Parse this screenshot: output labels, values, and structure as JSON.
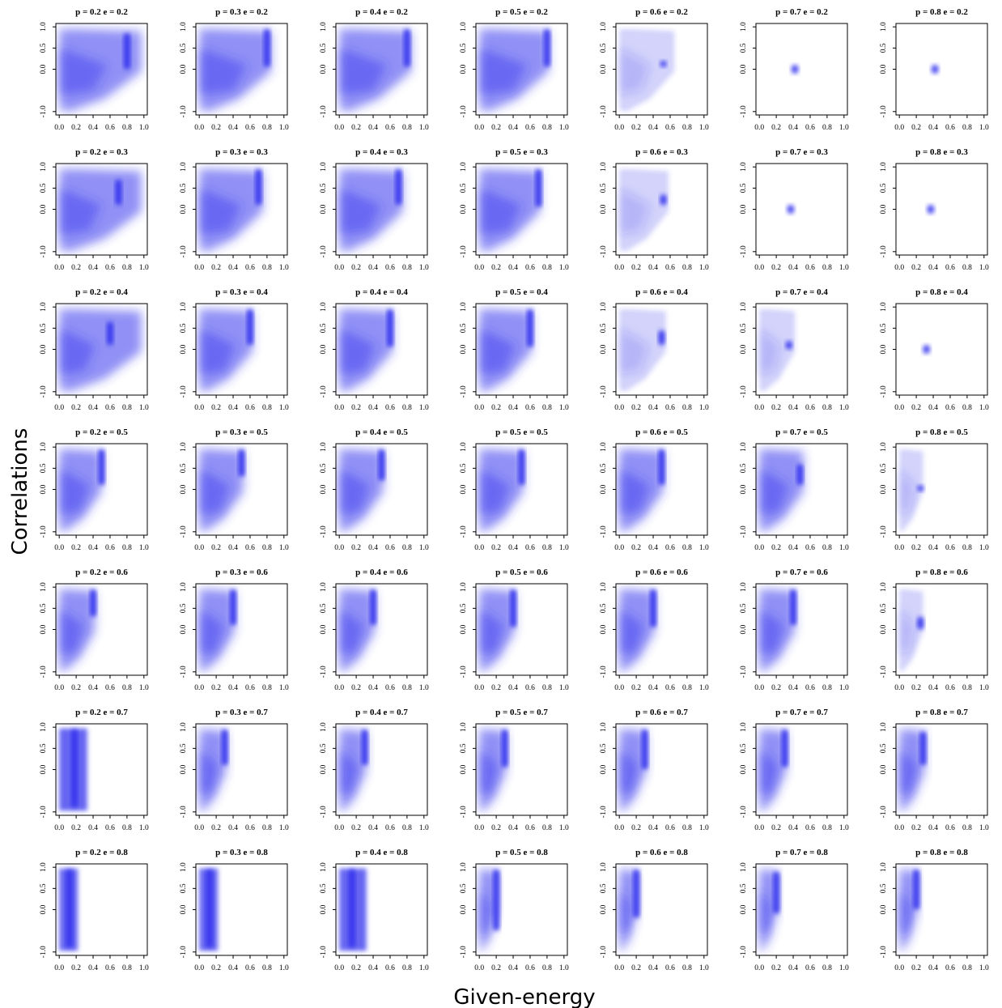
{
  "figure": {
    "xlabel": "Given-energy",
    "ylabel": "Correlations"
  },
  "chart_data": {
    "type": "heatmap",
    "layout": "small-multiples grid",
    "x_axis": {
      "range": [
        0,
        1
      ],
      "ticks": [
        0.0,
        0.2,
        0.4,
        0.6,
        0.8,
        1.0
      ],
      "tick_labels": [
        "0.0",
        "0.2",
        "0.4",
        "0.6",
        "0.8",
        "1.0"
      ]
    },
    "y_axis": {
      "range": [
        -1,
        1
      ],
      "ticks": [
        -1.0,
        0.0,
        0.5,
        1.0
      ],
      "tick_labels": [
        "-1.0",
        "0.0",
        "0.5",
        "1.0"
      ]
    },
    "color": "#3333ee",
    "p_values": [
      0.2,
      0.3,
      0.4,
      0.5,
      0.6,
      0.7,
      0.8
    ],
    "e_values": [
      0.2,
      0.3,
      0.4,
      0.5,
      0.6,
      0.7,
      0.8
    ],
    "panels": [
      {
        "title": "p = 0.2  e = 0.2",
        "p": 0.2,
        "e": 0.2,
        "shape": "wedge",
        "max_x": 0.97,
        "dense_x": 0.8,
        "dense_y": [
          0.0,
          0.85
        ]
      },
      {
        "title": "p = 0.3  e = 0.2",
        "p": 0.3,
        "e": 0.2,
        "shape": "wedge",
        "max_x": 0.85,
        "dense_x": 0.8,
        "dense_y": [
          0.05,
          0.95
        ]
      },
      {
        "title": "p = 0.4  e = 0.2",
        "p": 0.4,
        "e": 0.2,
        "shape": "wedge",
        "max_x": 0.85,
        "dense_x": 0.8,
        "dense_y": [
          0.05,
          0.95
        ]
      },
      {
        "title": "p = 0.5  e = 0.2",
        "p": 0.5,
        "e": 0.2,
        "shape": "wedge",
        "max_x": 0.82,
        "dense_x": 0.8,
        "dense_y": [
          0.05,
          0.95
        ]
      },
      {
        "title": "p = 0.6  e = 0.2",
        "p": 0.6,
        "e": 0.2,
        "shape": "sparse",
        "max_x": 0.65,
        "dense_x": 0.52,
        "dense_y": [
          0.05,
          0.2
        ]
      },
      {
        "title": "p = 0.7  e = 0.2",
        "p": 0.7,
        "e": 0.2,
        "shape": "blob",
        "center": [
          0.42,
          0.0
        ]
      },
      {
        "title": "p = 0.8  e = 0.2",
        "p": 0.8,
        "e": 0.2,
        "shape": "blob",
        "center": [
          0.42,
          0.0
        ]
      },
      {
        "title": "p = 0.2  e = 0.3",
        "p": 0.2,
        "e": 0.3,
        "shape": "wedge",
        "max_x": 0.97,
        "dense_x": 0.7,
        "dense_y": [
          0.1,
          0.7
        ]
      },
      {
        "title": "p = 0.3  e = 0.3",
        "p": 0.3,
        "e": 0.3,
        "shape": "wedge",
        "max_x": 0.75,
        "dense_x": 0.7,
        "dense_y": [
          0.1,
          0.95
        ]
      },
      {
        "title": "p = 0.4  e = 0.3",
        "p": 0.4,
        "e": 0.3,
        "shape": "wedge",
        "max_x": 0.75,
        "dense_x": 0.7,
        "dense_y": [
          0.1,
          0.95
        ]
      },
      {
        "title": "p = 0.5  e = 0.3",
        "p": 0.5,
        "e": 0.3,
        "shape": "wedge",
        "max_x": 0.72,
        "dense_x": 0.7,
        "dense_y": [
          0.05,
          0.95
        ]
      },
      {
        "title": "p = 0.6  e = 0.3",
        "p": 0.6,
        "e": 0.3,
        "shape": "sparse",
        "max_x": 0.58,
        "dense_x": 0.52,
        "dense_y": [
          0.1,
          0.35
        ]
      },
      {
        "title": "p = 0.7  e = 0.3",
        "p": 0.7,
        "e": 0.3,
        "shape": "blob",
        "center": [
          0.37,
          0.0
        ]
      },
      {
        "title": "p = 0.8  e = 0.3",
        "p": 0.8,
        "e": 0.3,
        "shape": "blob",
        "center": [
          0.37,
          0.0
        ]
      },
      {
        "title": "p = 0.2  e = 0.4",
        "p": 0.2,
        "e": 0.4,
        "shape": "wedge",
        "max_x": 0.97,
        "dense_x": 0.6,
        "dense_y": [
          0.1,
          0.65
        ]
      },
      {
        "title": "p = 0.3  e = 0.4",
        "p": 0.3,
        "e": 0.4,
        "shape": "wedge",
        "max_x": 0.63,
        "dense_x": 0.6,
        "dense_y": [
          0.1,
          0.95
        ]
      },
      {
        "title": "p = 0.4  e = 0.4",
        "p": 0.4,
        "e": 0.4,
        "shape": "wedge",
        "max_x": 0.63,
        "dense_x": 0.6,
        "dense_y": [
          0.05,
          0.95
        ]
      },
      {
        "title": "p = 0.5  e = 0.4",
        "p": 0.5,
        "e": 0.4,
        "shape": "wedge",
        "max_x": 0.62,
        "dense_x": 0.6,
        "dense_y": [
          0.05,
          0.95
        ]
      },
      {
        "title": "p = 0.6  e = 0.4",
        "p": 0.6,
        "e": 0.4,
        "shape": "sparse",
        "max_x": 0.55,
        "dense_x": 0.5,
        "dense_y": [
          0.1,
          0.45
        ]
      },
      {
        "title": "p = 0.7  e = 0.4",
        "p": 0.7,
        "e": 0.4,
        "shape": "sparse",
        "max_x": 0.42,
        "dense_x": 0.35,
        "dense_y": [
          0.0,
          0.2
        ]
      },
      {
        "title": "p = 0.8  e = 0.4",
        "p": 0.8,
        "e": 0.4,
        "shape": "blob",
        "center": [
          0.32,
          0.0
        ]
      },
      {
        "title": "p = 0.2  e = 0.5",
        "p": 0.2,
        "e": 0.5,
        "shape": "wedge",
        "max_x": 0.5,
        "dense_x": 0.5,
        "dense_y": [
          0.1,
          0.95
        ]
      },
      {
        "title": "p = 0.3  e = 0.5",
        "p": 0.3,
        "e": 0.5,
        "shape": "wedge",
        "max_x": 0.52,
        "dense_x": 0.5,
        "dense_y": [
          0.3,
          0.95
        ]
      },
      {
        "title": "p = 0.4  e = 0.5",
        "p": 0.4,
        "e": 0.5,
        "shape": "wedge",
        "max_x": 0.52,
        "dense_x": 0.5,
        "dense_y": [
          0.2,
          0.95
        ]
      },
      {
        "title": "p = 0.5  e = 0.5",
        "p": 0.5,
        "e": 0.5,
        "shape": "wedge",
        "max_x": 0.52,
        "dense_x": 0.5,
        "dense_y": [
          0.1,
          0.95
        ]
      },
      {
        "title": "p = 0.6  e = 0.5",
        "p": 0.6,
        "e": 0.5,
        "shape": "wedge",
        "max_x": 0.52,
        "dense_x": 0.5,
        "dense_y": [
          0.1,
          0.95
        ]
      },
      {
        "title": "p = 0.7  e = 0.5",
        "p": 0.7,
        "e": 0.5,
        "shape": "wedge",
        "max_x": 0.52,
        "dense_x": 0.48,
        "dense_y": [
          0.1,
          0.6
        ]
      },
      {
        "title": "p = 0.8  e = 0.5",
        "p": 0.8,
        "e": 0.5,
        "shape": "sparse",
        "max_x": 0.28,
        "dense_x": 0.25,
        "dense_y": [
          -0.05,
          0.1
        ]
      },
      {
        "title": "p = 0.2  e = 0.6",
        "p": 0.2,
        "e": 0.6,
        "shape": "wedge",
        "max_x": 0.42,
        "dense_x": 0.4,
        "dense_y": [
          0.3,
          0.95
        ]
      },
      {
        "title": "p = 0.3  e = 0.6",
        "p": 0.3,
        "e": 0.6,
        "shape": "wedge",
        "max_x": 0.42,
        "dense_x": 0.4,
        "dense_y": [
          0.1,
          0.95
        ]
      },
      {
        "title": "p = 0.4  e = 0.6",
        "p": 0.4,
        "e": 0.6,
        "shape": "wedge",
        "max_x": 0.42,
        "dense_x": 0.4,
        "dense_y": [
          0.1,
          0.95
        ]
      },
      {
        "title": "p = 0.5  e = 0.6",
        "p": 0.5,
        "e": 0.6,
        "shape": "wedge",
        "max_x": 0.42,
        "dense_x": 0.4,
        "dense_y": [
          0.05,
          0.95
        ]
      },
      {
        "title": "p = 0.6  e = 0.6",
        "p": 0.6,
        "e": 0.6,
        "shape": "wedge",
        "max_x": 0.42,
        "dense_x": 0.4,
        "dense_y": [
          0.05,
          0.95
        ]
      },
      {
        "title": "p = 0.7  e = 0.6",
        "p": 0.7,
        "e": 0.6,
        "shape": "wedge",
        "max_x": 0.42,
        "dense_x": 0.4,
        "dense_y": [
          0.1,
          0.95
        ]
      },
      {
        "title": "p = 0.8  e = 0.6",
        "p": 0.8,
        "e": 0.6,
        "shape": "sparse",
        "max_x": 0.28,
        "dense_x": 0.25,
        "dense_y": [
          0.0,
          0.3
        ]
      },
      {
        "title": "p = 0.2  e = 0.7",
        "p": 0.2,
        "e": 0.7,
        "shape": "column",
        "max_x": 0.33,
        "dense_x": 0.18,
        "dense_y": [
          -0.9,
          0.95
        ]
      },
      {
        "title": "p = 0.3  e = 0.7",
        "p": 0.3,
        "e": 0.7,
        "shape": "wedge",
        "max_x": 0.32,
        "dense_x": 0.3,
        "dense_y": [
          0.1,
          0.95
        ]
      },
      {
        "title": "p = 0.4  e = 0.7",
        "p": 0.4,
        "e": 0.7,
        "shape": "wedge",
        "max_x": 0.32,
        "dense_x": 0.3,
        "dense_y": [
          0.1,
          0.95
        ]
      },
      {
        "title": "p = 0.5  e = 0.7",
        "p": 0.5,
        "e": 0.7,
        "shape": "wedge",
        "max_x": 0.32,
        "dense_x": 0.3,
        "dense_y": [
          0.05,
          0.95
        ]
      },
      {
        "title": "p = 0.6  e = 0.7",
        "p": 0.6,
        "e": 0.7,
        "shape": "wedge",
        "max_x": 0.32,
        "dense_x": 0.3,
        "dense_y": [
          0.0,
          0.95
        ]
      },
      {
        "title": "p = 0.7  e = 0.7",
        "p": 0.7,
        "e": 0.7,
        "shape": "wedge",
        "max_x": 0.32,
        "dense_x": 0.3,
        "dense_y": [
          0.05,
          0.95
        ]
      },
      {
        "title": "p = 0.8  e = 0.7",
        "p": 0.8,
        "e": 0.7,
        "shape": "wedge",
        "max_x": 0.3,
        "dense_x": 0.28,
        "dense_y": [
          0.1,
          0.9
        ]
      },
      {
        "title": "p = 0.2  e = 0.8",
        "p": 0.2,
        "e": 0.8,
        "shape": "column",
        "max_x": 0.22,
        "dense_x": 0.12,
        "dense_y": [
          -0.9,
          0.95
        ]
      },
      {
        "title": "p = 0.3  e = 0.8",
        "p": 0.3,
        "e": 0.8,
        "shape": "column",
        "max_x": 0.22,
        "dense_x": 0.12,
        "dense_y": [
          -0.9,
          0.95
        ]
      },
      {
        "title": "p = 0.4  e = 0.8",
        "p": 0.4,
        "e": 0.8,
        "shape": "column",
        "max_x": 0.32,
        "dense_x": 0.15,
        "dense_y": [
          -0.9,
          0.95
        ]
      },
      {
        "title": "p = 0.5  e = 0.8",
        "p": 0.5,
        "e": 0.8,
        "shape": "wedge",
        "max_x": 0.22,
        "dense_x": 0.2,
        "dense_y": [
          -0.5,
          0.95
        ]
      },
      {
        "title": "p = 0.6  e = 0.8",
        "p": 0.6,
        "e": 0.8,
        "shape": "wedge",
        "max_x": 0.22,
        "dense_x": 0.2,
        "dense_y": [
          -0.2,
          0.95
        ]
      },
      {
        "title": "p = 0.7  e = 0.8",
        "p": 0.7,
        "e": 0.8,
        "shape": "wedge",
        "max_x": 0.22,
        "dense_x": 0.2,
        "dense_y": [
          -0.1,
          0.9
        ]
      },
      {
        "title": "p = 0.8  e = 0.8",
        "p": 0.8,
        "e": 0.8,
        "shape": "wedge",
        "max_x": 0.22,
        "dense_x": 0.2,
        "dense_y": [
          0.0,
          0.95
        ]
      }
    ]
  }
}
